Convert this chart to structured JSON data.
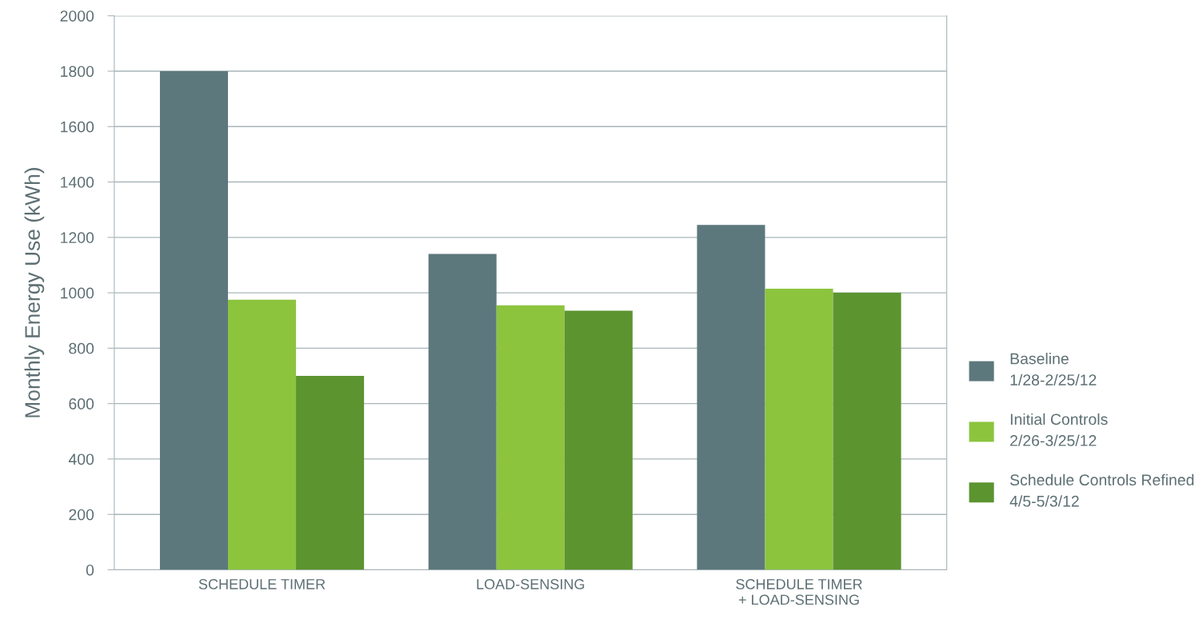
{
  "chart_data": {
    "type": "bar",
    "ylabel": "Monthly Energy Use (kWh)",
    "categories": [
      "SCHEDULE TIMER",
      "LOAD-SENSING",
      "SCHEDULE TIMER\n+ LOAD-SENSING"
    ],
    "series": [
      {
        "name": "Baseline\n1/28-2/25/12",
        "color": "#5d787d",
        "values": [
          1800,
          1140,
          1245
        ]
      },
      {
        "name": "Initial Controls\n2/26-3/25/12",
        "color": "#8cc43e",
        "values": [
          975,
          955,
          1015
        ]
      },
      {
        "name": "Schedule Controls Refined\n4/5-5/3/12",
        "color": "#5c9430",
        "values": [
          700,
          935,
          1000
        ]
      }
    ],
    "ylim": [
      0,
      2000
    ],
    "yticks": [
      0,
      200,
      400,
      600,
      800,
      1000,
      1200,
      1400,
      1600,
      1800,
      2000
    ],
    "grid": "y",
    "legend": "right"
  }
}
